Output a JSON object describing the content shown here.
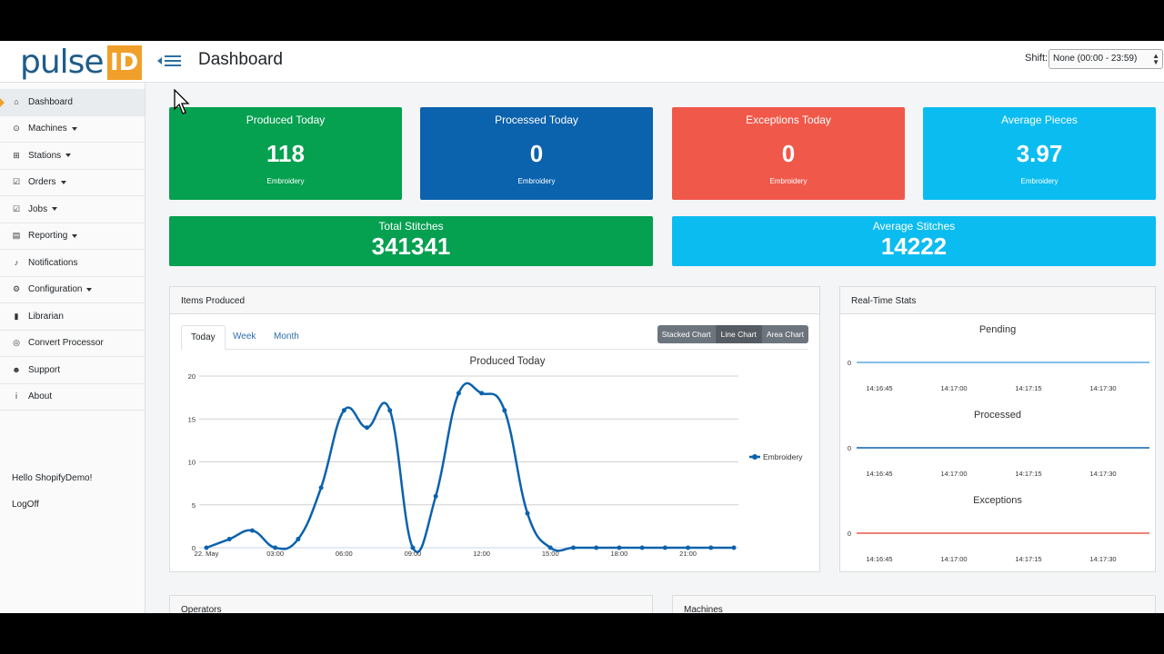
{
  "brand": {
    "text": "pulse",
    "box": "ID",
    "accent": "#f0a02a"
  },
  "header": {
    "title": "Dashboard",
    "shift_label": "Shift:",
    "shift_value": "None (00:00 - 23:59)"
  },
  "sidebar": {
    "items": [
      {
        "label": "Dashboard",
        "icon": "home-icon",
        "glyph": "⌂",
        "caret": false,
        "active": true
      },
      {
        "label": "Machines",
        "icon": "machine-icon",
        "glyph": "⊙",
        "caret": true
      },
      {
        "label": "Stations",
        "icon": "stations-icon",
        "glyph": "⊞",
        "caret": true
      },
      {
        "label": "Orders",
        "icon": "checkbox-icon",
        "glyph": "☑",
        "caret": true
      },
      {
        "label": "Jobs",
        "icon": "checkbox-icon",
        "glyph": "☑",
        "caret": true
      },
      {
        "label": "Reporting",
        "icon": "table-icon",
        "glyph": "▤",
        "caret": true
      },
      {
        "label": "Notifications",
        "icon": "bell-icon",
        "glyph": "♪",
        "caret": false
      },
      {
        "label": "Configuration",
        "icon": "gear-icon",
        "glyph": "⚙",
        "caret": true
      },
      {
        "label": "Librarian",
        "icon": "book-icon",
        "glyph": "▮",
        "caret": false
      },
      {
        "label": "Convert Processor",
        "icon": "convert-icon",
        "glyph": "◎",
        "caret": false
      },
      {
        "label": "Support",
        "icon": "users-icon",
        "glyph": "☻",
        "caret": false
      },
      {
        "label": "About",
        "icon": "info-icon",
        "glyph": "ⅰ",
        "caret": false
      }
    ],
    "greeting": "Hello ShopifyDemo!",
    "logoff": "LogOff"
  },
  "cards": [
    {
      "title": "Produced Today",
      "value": "118",
      "sub": "Embroidery",
      "color": "#05a050"
    },
    {
      "title": "Processed Today",
      "value": "0",
      "sub": "Embroidery",
      "color": "#0b62ad"
    },
    {
      "title": "Exceptions Today",
      "value": "0",
      "sub": "Embroidery",
      "color": "#f0584a"
    },
    {
      "title": "Average Pieces",
      "value": "3.97",
      "sub": "Embroidery",
      "color": "#0bbcf0"
    }
  ],
  "totals": [
    {
      "title": "Total Stitches",
      "value": "341341",
      "color": "#05a050"
    },
    {
      "title": "Average Stitches",
      "value": "14222",
      "color": "#0bbcf0"
    }
  ],
  "items_produced": {
    "heading": "Items Produced",
    "tabs": [
      "Today",
      "Week",
      "Month"
    ],
    "buttons": [
      "Stacked Chart",
      "Line Chart",
      "Area Chart"
    ]
  },
  "realtime": {
    "heading": "Real-Time Stats"
  },
  "bottom": {
    "operators": "Operators",
    "machines": "Machines"
  },
  "chart_data": [
    {
      "type": "line",
      "title": "Produced Today",
      "x": [
        "00:00",
        "01:00",
        "02:00",
        "03:00",
        "04:00",
        "05:00",
        "06:00",
        "07:00",
        "08:00",
        "09:00",
        "10:00",
        "11:00",
        "12:00",
        "13:00",
        "14:00",
        "15:00",
        "16:00",
        "17:00",
        "18:00",
        "19:00",
        "20:00",
        "21:00",
        "22:00",
        "23:00"
      ],
      "tick_labels": [
        "22. May",
        "03:00",
        "06:00",
        "09:00",
        "12:00",
        "15:00",
        "18:00",
        "21:00"
      ],
      "series": [
        {
          "name": "Embroidery",
          "values": [
            0,
            1,
            2,
            0,
            1,
            7,
            16,
            14,
            16,
            0,
            6,
            18,
            18,
            16,
            4,
            0,
            0,
            0,
            0,
            0,
            0,
            0,
            0,
            0
          ],
          "color": "#0b62ad"
        }
      ],
      "ylim": [
        0,
        20
      ],
      "yticks": [
        0,
        5,
        10,
        15,
        20
      ],
      "legend": "right"
    },
    {
      "type": "line",
      "title": "Pending",
      "x_ticks": [
        "14:16:45",
        "14:17:00",
        "14:17:15",
        "14:17:30"
      ],
      "series": [
        {
          "values": [
            0,
            0,
            0,
            0
          ],
          "color": "#5aa8e6"
        }
      ],
      "y_ticks": [
        0
      ]
    },
    {
      "type": "line",
      "title": "Processed",
      "x_ticks": [
        "14:16:45",
        "14:17:00",
        "14:17:15",
        "14:17:30"
      ],
      "series": [
        {
          "values": [
            0,
            0,
            0,
            0
          ],
          "color": "#0b62ad"
        }
      ],
      "y_ticks": [
        0
      ]
    },
    {
      "type": "line",
      "title": "Exceptions",
      "x_ticks": [
        "14:16:45",
        "14:17:00",
        "14:17:15",
        "14:17:30"
      ],
      "series": [
        {
          "values": [
            0,
            0,
            0,
            0
          ],
          "color": "#e8574a"
        }
      ],
      "y_ticks": [
        0
      ]
    }
  ]
}
